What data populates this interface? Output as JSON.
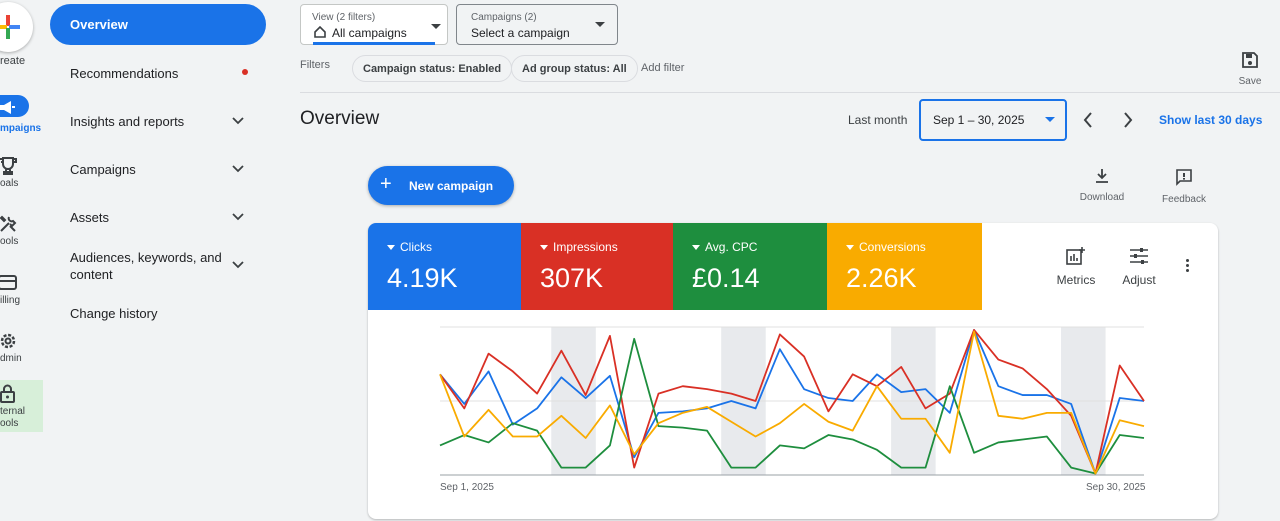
{
  "rail": {
    "create_label": "reate",
    "items": [
      {
        "icon": "megaphone-icon",
        "label": "mpaigns"
      },
      {
        "icon": "trophy-icon",
        "label": "oals"
      },
      {
        "icon": "tools-icon",
        "label": "ools"
      },
      {
        "icon": "credit-card-icon",
        "label": "illing"
      },
      {
        "icon": "gear-icon",
        "label": "dmin"
      },
      {
        "icon": "lock-icon",
        "label": "ternal\nools"
      }
    ]
  },
  "sidebar": {
    "items": [
      {
        "label": "Overview",
        "active": true
      },
      {
        "label": "Recommendations",
        "badge": true
      },
      {
        "label": "Insights and reports",
        "expandable": true
      },
      {
        "label": "Campaigns",
        "expandable": true
      },
      {
        "label": "Assets",
        "expandable": true
      },
      {
        "label": "Audiences, keywords, and content",
        "expandable": true
      },
      {
        "label": "Change history"
      }
    ]
  },
  "topbar": {
    "view_small": "View (2 filters)",
    "view_value": "All campaigns",
    "campaigns_small": "Campaigns (2)",
    "campaigns_value": "Select a campaign",
    "filters_label": "Filters",
    "chips": [
      "Campaign status: Enabled",
      "Ad group status: All"
    ],
    "add_filter": "Add filter",
    "save_label": "Save"
  },
  "header": {
    "title": "Overview",
    "date_preset": "Last month",
    "date_range": "Sep 1 – 30, 2025",
    "show_last": "Show last 30 days"
  },
  "actions": {
    "new_campaign": "New campaign",
    "download": "Download",
    "feedback": "Feedback"
  },
  "metrics": [
    {
      "label": "Clicks",
      "value": "4.19K",
      "color": "#1a73e8"
    },
    {
      "label": "Impressions",
      "value": "307K",
      "color": "#d93025"
    },
    {
      "label": "Avg. CPC",
      "value": "£0.14",
      "color": "#1e8e3e"
    },
    {
      "label": "Conversions",
      "value": "2.26K",
      "color": "#f9ab00"
    }
  ],
  "card_tools": {
    "metrics": "Metrics",
    "adjust": "Adjust"
  },
  "chart_data": {
    "type": "line",
    "x_start_label": "Sep 1, 2025",
    "x_end_label": "Sep 30, 2025",
    "x": [
      1,
      2,
      3,
      4,
      5,
      6,
      7,
      8,
      9,
      10,
      11,
      12,
      13,
      14,
      15,
      16,
      17,
      18,
      19,
      20,
      21,
      22,
      23,
      24,
      25,
      26,
      27,
      28,
      29,
      30
    ],
    "weekend_days": [
      6,
      7,
      13,
      14,
      20,
      21,
      27,
      28
    ],
    "ylim": [
      0,
      100
    ],
    "series": [
      {
        "color": "#1a73e8",
        "values": [
          68,
          48,
          70,
          34,
          45,
          66,
          52,
          67,
          12,
          42,
          43,
          45,
          50,
          45,
          85,
          58,
          52,
          50,
          68,
          56,
          58,
          42,
          98,
          60,
          54,
          54,
          48,
          1,
          52,
          50
        ]
      },
      {
        "color": "#d93025",
        "values": [
          68,
          45,
          82,
          70,
          55,
          84,
          54,
          94,
          5,
          55,
          60,
          58,
          55,
          50,
          95,
          80,
          43,
          68,
          60,
          73,
          45,
          55,
          98,
          78,
          72,
          58,
          40,
          1,
          74,
          50
        ]
      },
      {
        "color": "#1e8e3e",
        "values": [
          20,
          27,
          22,
          35,
          30,
          5,
          5,
          20,
          92,
          33,
          32,
          30,
          5,
          5,
          20,
          18,
          27,
          24,
          17,
          5,
          5,
          60,
          15,
          22,
          24,
          26,
          5,
          1,
          27,
          25
        ]
      },
      {
        "color": "#f9ab00",
        "values": [
          68,
          26,
          44,
          26,
          26,
          40,
          25,
          47,
          14,
          35,
          42,
          46,
          36,
          26,
          35,
          48,
          36,
          30,
          60,
          38,
          38,
          15,
          97,
          40,
          38,
          42,
          42,
          1,
          37,
          33
        ]
      }
    ]
  }
}
